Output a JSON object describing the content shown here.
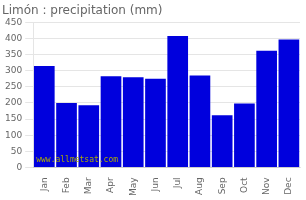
{
  "chart_data": {
    "type": "bar",
    "title": "Limón : precipitation (mm)",
    "categories": [
      "Jan",
      "Feb",
      "Mar",
      "Apr",
      "May",
      "Jun",
      "Jul",
      "Aug",
      "Sep",
      "Oct",
      "Nov",
      "Dec"
    ],
    "values": [
      315,
      200,
      193,
      283,
      280,
      275,
      408,
      285,
      162,
      198,
      362,
      397
    ],
    "color": "#0000DD",
    "ylim": [
      0,
      450
    ],
    "yticks": [
      0,
      50,
      100,
      150,
      200,
      250,
      300,
      350,
      400,
      450
    ],
    "grid": true,
    "annotations": [
      {
        "text": "www.allmetsat.com",
        "color": "#aaaa00"
      }
    ]
  }
}
